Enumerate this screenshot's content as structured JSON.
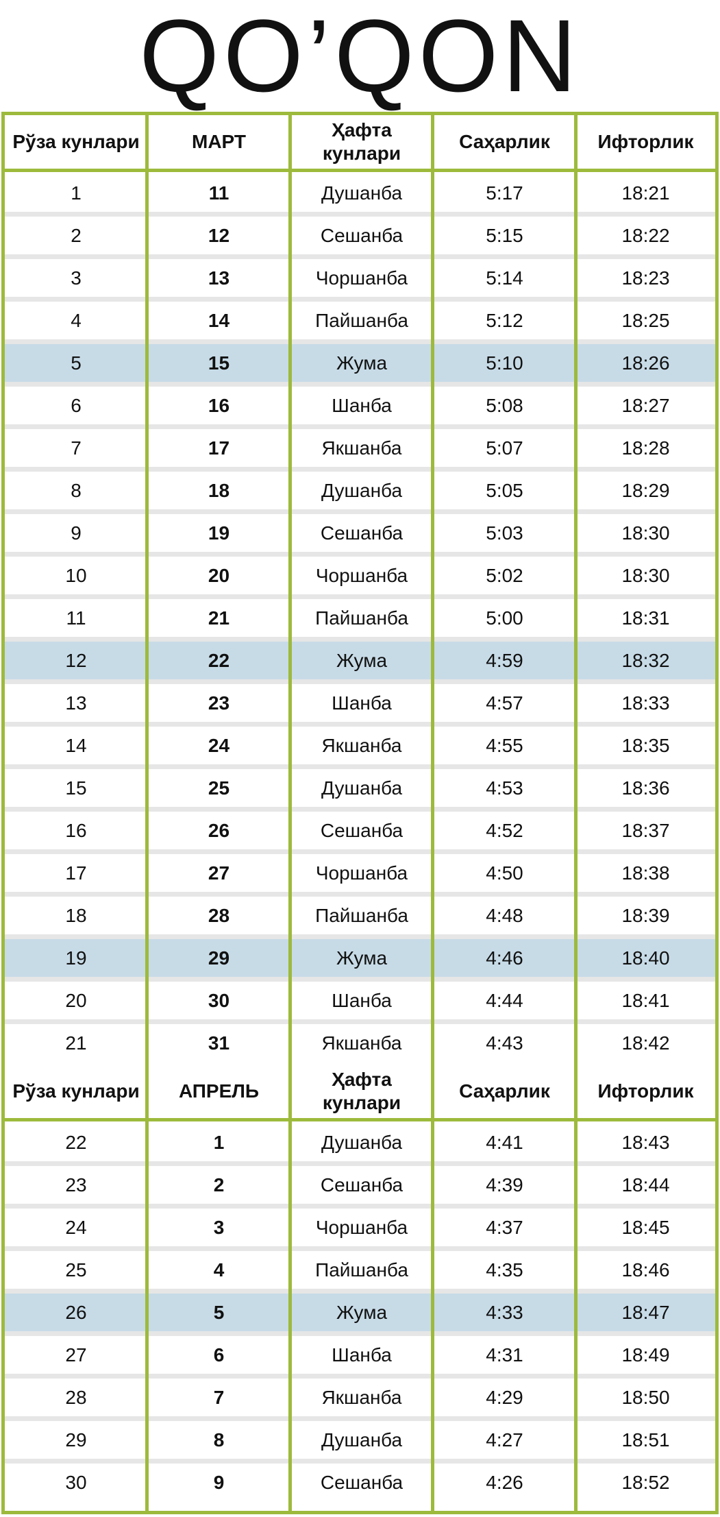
{
  "title": "QO’QON",
  "march": {
    "headers": [
      "Рўза кунлари",
      "МАРТ",
      "Ҳафта кунлари",
      "Саҳарлик",
      "Ифторлик"
    ],
    "rows": [
      {
        "day": "1",
        "date": "11",
        "weekday": "Душанба",
        "sahar": "5:17",
        "iftor": "18:21",
        "hl": false
      },
      {
        "day": "2",
        "date": "12",
        "weekday": "Сешанба",
        "sahar": "5:15",
        "iftor": "18:22",
        "hl": false
      },
      {
        "day": "3",
        "date": "13",
        "weekday": "Чоршанба",
        "sahar": "5:14",
        "iftor": "18:23",
        "hl": false
      },
      {
        "day": "4",
        "date": "14",
        "weekday": "Пайшанба",
        "sahar": "5:12",
        "iftor": "18:25",
        "hl": false
      },
      {
        "day": "5",
        "date": "15",
        "weekday": "Жума",
        "sahar": "5:10",
        "iftor": "18:26",
        "hl": true
      },
      {
        "day": "6",
        "date": "16",
        "weekday": "Шанба",
        "sahar": "5:08",
        "iftor": "18:27",
        "hl": false
      },
      {
        "day": "7",
        "date": "17",
        "weekday": "Якшанба",
        "sahar": "5:07",
        "iftor": "18:28",
        "hl": false
      },
      {
        "day": "8",
        "date": "18",
        "weekday": "Душанба",
        "sahar": "5:05",
        "iftor": "18:29",
        "hl": false
      },
      {
        "day": "9",
        "date": "19",
        "weekday": "Сешанба",
        "sahar": "5:03",
        "iftor": "18:30",
        "hl": false
      },
      {
        "day": "10",
        "date": "20",
        "weekday": "Чоршанба",
        "sahar": "5:02",
        "iftor": "18:30",
        "hl": false
      },
      {
        "day": "11",
        "date": "21",
        "weekday": "Пайшанба",
        "sahar": "5:00",
        "iftor": "18:31",
        "hl": false
      },
      {
        "day": "12",
        "date": "22",
        "weekday": "Жума",
        "sahar": "4:59",
        "iftor": "18:32",
        "hl": true
      },
      {
        "day": "13",
        "date": "23",
        "weekday": "Шанба",
        "sahar": "4:57",
        "iftor": "18:33",
        "hl": false
      },
      {
        "day": "14",
        "date": "24",
        "weekday": "Якшанба",
        "sahar": "4:55",
        "iftor": "18:35",
        "hl": false
      },
      {
        "day": "15",
        "date": "25",
        "weekday": "Душанба",
        "sahar": "4:53",
        "iftor": "18:36",
        "hl": false
      },
      {
        "day": "16",
        "date": "26",
        "weekday": "Сешанба",
        "sahar": "4:52",
        "iftor": "18:37",
        "hl": false
      },
      {
        "day": "17",
        "date": "27",
        "weekday": "Чоршанба",
        "sahar": "4:50",
        "iftor": "18:38",
        "hl": false
      },
      {
        "day": "18",
        "date": "28",
        "weekday": "Пайшанба",
        "sahar": "4:48",
        "iftor": "18:39",
        "hl": false
      },
      {
        "day": "19",
        "date": "29",
        "weekday": "Жума",
        "sahar": "4:46",
        "iftor": "18:40",
        "hl": true
      },
      {
        "day": "20",
        "date": "30",
        "weekday": "Шанба",
        "sahar": "4:44",
        "iftor": "18:41",
        "hl": false
      },
      {
        "day": "21",
        "date": "31",
        "weekday": "Якшанба",
        "sahar": "4:43",
        "iftor": "18:42",
        "hl": false
      }
    ]
  },
  "april": {
    "headers": [
      "Рўза кунлари",
      "АПРЕЛЬ",
      "Ҳафта кунлари",
      "Саҳарлик",
      "Ифторлик"
    ],
    "rows": [
      {
        "day": "22",
        "date": "1",
        "weekday": "Душанба",
        "sahar": "4:41",
        "iftor": "18:43",
        "hl": false
      },
      {
        "day": "23",
        "date": "2",
        "weekday": "Сешанба",
        "sahar": "4:39",
        "iftor": "18:44",
        "hl": false
      },
      {
        "day": "24",
        "date": "3",
        "weekday": "Чоршанба",
        "sahar": "4:37",
        "iftor": "18:45",
        "hl": false
      },
      {
        "day": "25",
        "date": "4",
        "weekday": "Пайшанба",
        "sahar": "4:35",
        "iftor": "18:46",
        "hl": false
      },
      {
        "day": "26",
        "date": "5",
        "weekday": "Жума",
        "sahar": "4:33",
        "iftor": "18:47",
        "hl": true
      },
      {
        "day": "27",
        "date": "6",
        "weekday": "Шанба",
        "sahar": "4:31",
        "iftor": "18:49",
        "hl": false
      },
      {
        "day": "28",
        "date": "7",
        "weekday": "Якшанба",
        "sahar": "4:29",
        "iftor": "18:50",
        "hl": false
      },
      {
        "day": "29",
        "date": "8",
        "weekday": "Душанба",
        "sahar": "4:27",
        "iftor": "18:51",
        "hl": false
      },
      {
        "day": "30",
        "date": "9",
        "weekday": "Сешанба",
        "sahar": "4:26",
        "iftor": "18:52",
        "hl": false
      }
    ]
  },
  "colors": {
    "border": "#9dba3c",
    "highlight": "#c7dbe7",
    "separator": "#e6e6e6"
  }
}
